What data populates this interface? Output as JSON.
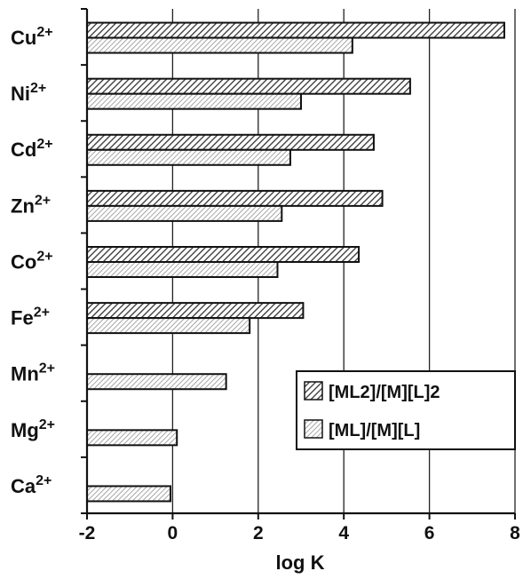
{
  "chart_data": {
    "type": "bar",
    "orientation": "horizontal",
    "categories": [
      {
        "base": "Cu",
        "sup": "2+"
      },
      {
        "base": "Ni",
        "sup": "2+"
      },
      {
        "base": "Cd",
        "sup": "2+"
      },
      {
        "base": "Zn",
        "sup": "2+"
      },
      {
        "base": "Co",
        "sup": "2+"
      },
      {
        "base": "Fe",
        "sup": "2+"
      },
      {
        "base": "Mn",
        "sup": "2+"
      },
      {
        "base": "Mg",
        "sup": "2+"
      },
      {
        "base": "Ca",
        "sup": "2+"
      }
    ],
    "series": [
      {
        "name": "[ML2]/[M][L]2",
        "pattern": "dense-hatch",
        "values": [
          7.75,
          5.55,
          4.7,
          4.9,
          4.35,
          3.05,
          null,
          null,
          null
        ]
      },
      {
        "name": "[ML]/[M][L]",
        "pattern": "light-hatch",
        "values": [
          4.2,
          3.0,
          2.75,
          2.55,
          2.45,
          1.8,
          1.25,
          0.1,
          -0.05
        ]
      }
    ],
    "xlabel": "log K",
    "xlim": [
      -2,
      8
    ],
    "xticks": [
      "-2",
      "0",
      "2",
      "4",
      "6",
      "8"
    ],
    "gridlines": "vertical",
    "legend_position": "lower-right"
  }
}
